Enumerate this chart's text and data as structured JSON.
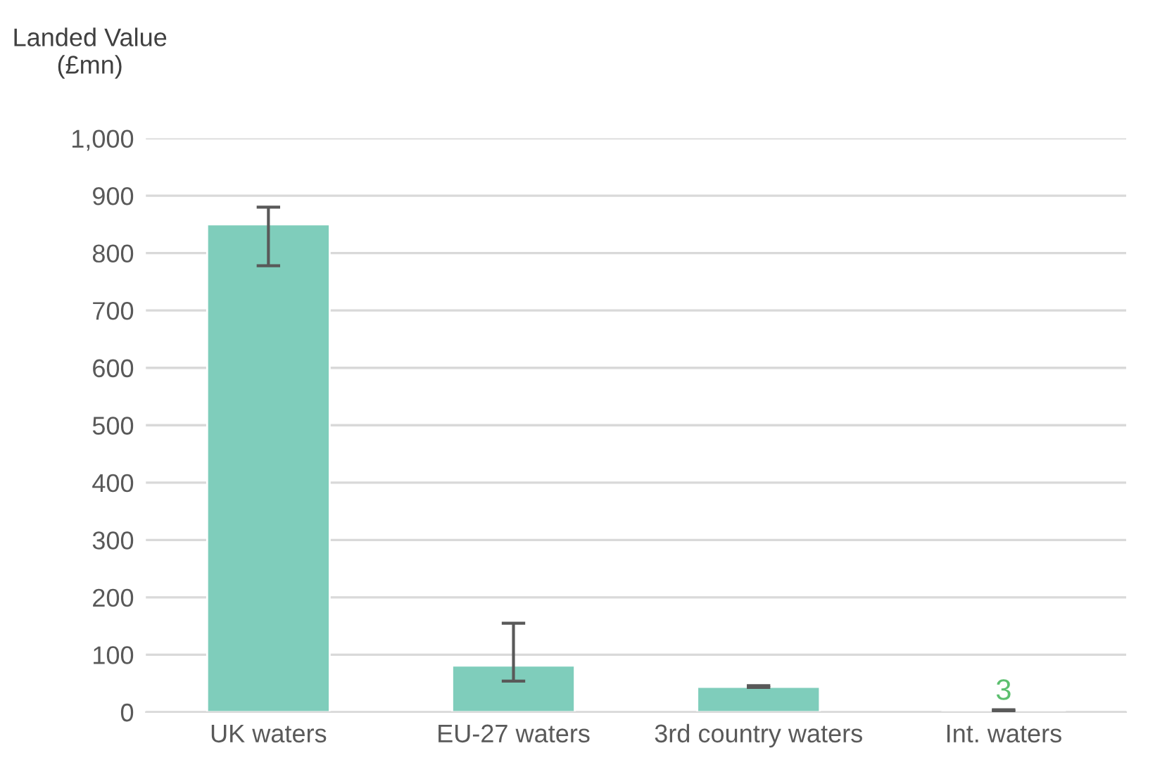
{
  "chart_data": {
    "type": "bar",
    "ylabel": "Landed Value\n(£mn)",
    "categories": [
      "UK waters",
      "EU-27 waters",
      "3rd country waters",
      "Int. waters"
    ],
    "values": [
      850,
      81,
      44,
      3
    ],
    "errors": [
      [
        778,
        880
      ],
      [
        54,
        155
      ],
      [
        43,
        46
      ],
      [
        2,
        4
      ]
    ],
    "value_labels": [
      null,
      null,
      null,
      "3"
    ],
    "color": "#7fcdbb",
    "ylim": [
      0,
      1000
    ],
    "yticks": [
      0,
      100,
      200,
      300,
      400,
      500,
      600,
      700,
      800,
      900,
      {
        "value": 1000,
        "label": "1,000"
      }
    ],
    "grid": "y",
    "legend": false
  }
}
